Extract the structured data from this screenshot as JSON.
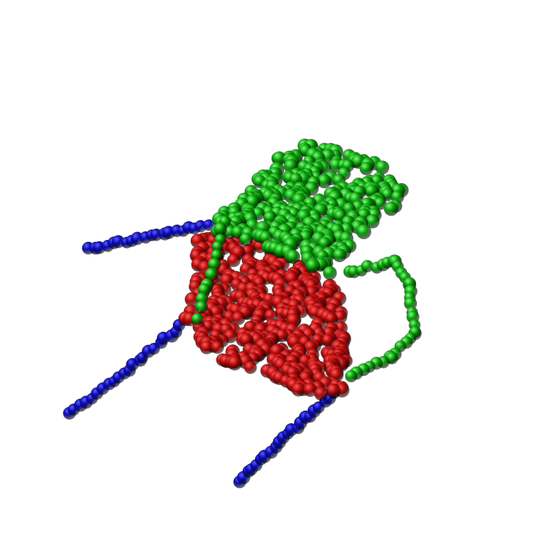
{
  "scene": {
    "background": "#ffffff",
    "parts": [
      {
        "id": "legs",
        "color": "#0a0ab4",
        "highlight": "#5a5aff"
      },
      {
        "id": "seat",
        "color": "#b40a0a",
        "highlight": "#ff5a5a"
      },
      {
        "id": "back_arm",
        "color": "#0aa00a",
        "highlight": "#7aff7a"
      }
    ]
  }
}
